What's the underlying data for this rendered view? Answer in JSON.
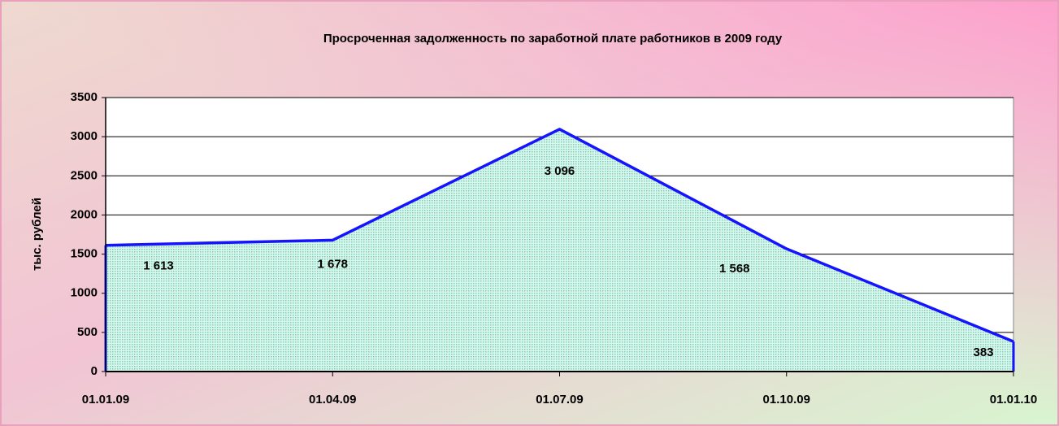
{
  "chart_data": {
    "type": "area",
    "title": "Просроченная задолженность по заработной плате работников в 2009 году",
    "y_label": "тыс. рублей",
    "categories": [
      "01.01.09",
      "01.04.09",
      "01.07.09",
      "01.10.09",
      "01.01.10"
    ],
    "values": [
      1613,
      1678,
      3096,
      1568,
      383
    ],
    "value_labels": [
      "1 613",
      "1 678",
      "3 096",
      "1 568",
      "383"
    ],
    "ylim": [
      0,
      3500
    ],
    "yticks": [
      0,
      500,
      1000,
      1500,
      2000,
      2500,
      3000,
      3500
    ],
    "grid": true,
    "color": "#bfeedd",
    "line_color": "#1414ff"
  }
}
